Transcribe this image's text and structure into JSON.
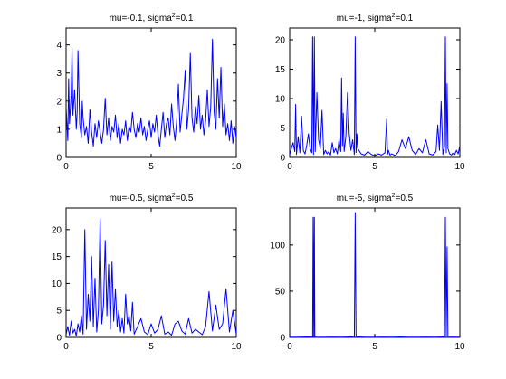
{
  "chart_data": [
    {
      "type": "line",
      "title": "mu=-0.1, sigma",
      "title_sup": "2",
      "title_end": "=0.1",
      "xlim": [
        0,
        10
      ],
      "ylim": [
        0,
        4.6
      ],
      "xticks": [
        "0",
        "5",
        "10"
      ],
      "yticks": [
        "0",
        "1",
        "2",
        "3",
        "4"
      ],
      "line_color": "#0000ff",
      "series": [
        {
          "x": [
            0.0,
            0.1,
            0.15,
            0.2,
            0.3,
            0.35,
            0.4,
            0.5,
            0.6,
            0.65,
            0.7,
            0.8,
            0.9,
            0.95,
            1.0,
            1.1,
            1.2,
            1.3,
            1.4,
            1.5,
            1.6,
            1.7,
            1.8,
            1.9,
            2.0,
            2.1,
            2.2,
            2.3,
            2.4,
            2.5,
            2.6,
            2.7,
            2.8,
            2.9,
            3.0,
            3.1,
            3.2,
            3.3,
            3.4,
            3.5,
            3.6,
            3.7,
            3.8,
            3.9,
            4.0,
            4.1,
            4.2,
            4.3,
            4.4,
            4.5,
            4.6,
            4.7,
            4.8,
            4.9,
            5.0,
            5.1,
            5.2,
            5.3,
            5.4,
            5.5,
            5.6,
            5.7,
            5.8,
            5.9,
            6.0,
            6.1,
            6.2,
            6.3,
            6.4,
            6.5,
            6.6,
            6.7,
            6.8,
            6.9,
            7.0,
            7.1,
            7.2,
            7.3,
            7.4,
            7.5,
            7.6,
            7.7,
            7.8,
            7.9,
            8.0,
            8.1,
            8.2,
            8.3,
            8.4,
            8.5,
            8.6,
            8.7,
            8.8,
            8.9,
            9.0,
            9.1,
            9.2,
            9.3,
            9.4,
            9.5,
            9.6,
            9.7,
            9.8,
            9.9,
            10.0
          ],
          "y": [
            1.8,
            0.6,
            2.8,
            1.2,
            2.2,
            3.9,
            1.5,
            2.4,
            1.0,
            1.6,
            3.8,
            1.2,
            0.7,
            2.0,
            1.4,
            0.8,
            1.1,
            0.5,
            1.7,
            0.9,
            0.4,
            1.2,
            0.7,
            1.3,
            0.9,
            0.5,
            1.0,
            2.1,
            0.8,
            1.4,
            0.6,
            1.1,
            0.9,
            1.5,
            0.7,
            1.2,
            0.5,
            1.0,
            0.8,
            1.3,
            0.6,
            1.1,
            0.9,
            1.6,
            1.0,
            0.7,
            1.2,
            0.9,
            1.4,
            0.8,
            1.1,
            0.6,
            1.0,
            1.3,
            0.7,
            1.2,
            0.9,
            1.5,
            0.8,
            0.4,
            1.0,
            1.6,
            0.7,
            1.2,
            1.4,
            0.8,
            1.9,
            1.1,
            0.6,
            1.3,
            2.6,
            0.9,
            1.5,
            2.1,
            3.1,
            1.0,
            1.7,
            3.7,
            1.4,
            0.9,
            1.8,
            1.2,
            2.2,
            1.0,
            1.5,
            0.8,
            1.3,
            2.4,
            1.1,
            1.8,
            4.2,
            1.6,
            1.0,
            2.8,
            1.4,
            3.2,
            1.1,
            1.9,
            0.8,
            1.2,
            0.6,
            1.3,
            0.5,
            1.1,
            0.7
          ]
        }
      ]
    },
    {
      "type": "line",
      "title": "mu=-1, sigma",
      "title_sup": "2",
      "title_end": "=0.1",
      "xlim": [
        0,
        10
      ],
      "ylim": [
        0,
        22
      ],
      "xticks": [
        "0",
        "5",
        "10"
      ],
      "yticks": [
        "0",
        "5",
        "10",
        "15",
        "20"
      ],
      "line_color": "#0000ff",
      "series": [
        {
          "x": [
            0.0,
            0.2,
            0.3,
            0.35,
            0.4,
            0.5,
            0.6,
            0.7,
            0.8,
            0.9,
            1.0,
            1.1,
            1.2,
            1.3,
            1.35,
            1.4,
            1.45,
            1.5,
            1.6,
            1.7,
            1.8,
            1.9,
            2.0,
            2.1,
            2.2,
            2.3,
            2.4,
            2.5,
            2.6,
            2.7,
            2.8,
            2.9,
            3.0,
            3.05,
            3.1,
            3.15,
            3.2,
            3.3,
            3.4,
            3.5,
            3.6,
            3.7,
            3.8,
            3.85,
            3.9,
            3.95,
            4.0,
            4.2,
            4.4,
            4.6,
            4.8,
            5.0,
            5.2,
            5.4,
            5.6,
            5.7,
            5.75,
            5.8,
            5.9,
            6.0,
            6.2,
            6.4,
            6.6,
            6.8,
            7.0,
            7.2,
            7.4,
            7.6,
            7.8,
            8.0,
            8.2,
            8.4,
            8.6,
            8.7,
            8.8,
            8.9,
            9.0,
            9.1,
            9.15,
            9.2,
            9.25,
            9.3,
            9.4,
            9.5,
            9.6,
            9.7,
            9.8,
            9.9,
            10.0
          ],
          "y": [
            0.5,
            2.5,
            1.0,
            9.0,
            0.5,
            3.5,
            0.8,
            7.0,
            1.2,
            0.6,
            2.0,
            4.0,
            1.5,
            0.8,
            20.5,
            0.5,
            20.5,
            1.0,
            11.0,
            3.0,
            1.5,
            8.0,
            0.5,
            1.2,
            0.6,
            1.0,
            0.4,
            2.5,
            0.8,
            1.5,
            0.6,
            3.0,
            1.0,
            13.5,
            2.0,
            7.5,
            1.0,
            3.5,
            11.0,
            4.0,
            1.2,
            3.0,
            0.5,
            20.5,
            0.8,
            4.0,
            1.5,
            0.6,
            0.4,
            1.0,
            0.5,
            0.3,
            0.6,
            0.4,
            0.8,
            6.5,
            0.5,
            1.2,
            0.4,
            0.6,
            0.3,
            1.0,
            3.0,
            1.5,
            3.5,
            1.2,
            0.5,
            1.5,
            0.8,
            3.0,
            0.6,
            0.4,
            1.0,
            5.5,
            1.2,
            9.5,
            0.5,
            2.0,
            20.5,
            0.8,
            12.5,
            1.5,
            0.6,
            0.4,
            0.8,
            0.5,
            1.2,
            0.6,
            2.0
          ]
        }
      ]
    },
    {
      "type": "line",
      "title": "mu=-0.5, sigma",
      "title_sup": "2",
      "title_end": "=0.5",
      "xlim": [
        0,
        10
      ],
      "ylim": [
        0,
        24
      ],
      "xticks": [
        "0",
        "5",
        "10"
      ],
      "yticks": [
        "0",
        "5",
        "10",
        "15",
        "20"
      ],
      "line_color": "#0000ff",
      "series": [
        {
          "x": [
            0.0,
            0.1,
            0.2,
            0.3,
            0.4,
            0.5,
            0.6,
            0.7,
            0.8,
            0.9,
            1.0,
            1.1,
            1.2,
            1.3,
            1.4,
            1.5,
            1.6,
            1.7,
            1.8,
            1.9,
            2.0,
            2.1,
            2.2,
            2.3,
            2.4,
            2.5,
            2.6,
            2.7,
            2.8,
            2.9,
            3.0,
            3.1,
            3.2,
            3.3,
            3.4,
            3.5,
            3.6,
            3.7,
            3.8,
            3.9,
            4.0,
            4.2,
            4.4,
            4.6,
            4.8,
            5.0,
            5.2,
            5.4,
            5.6,
            5.8,
            6.0,
            6.2,
            6.4,
            6.6,
            6.8,
            7.0,
            7.2,
            7.4,
            7.6,
            7.8,
            8.0,
            8.2,
            8.4,
            8.6,
            8.8,
            9.0,
            9.2,
            9.4,
            9.6,
            9.8,
            10.0
          ],
          "y": [
            0.5,
            2.0,
            0.4,
            3.0,
            0.8,
            1.5,
            0.3,
            2.5,
            1.0,
            4.0,
            0.6,
            20.0,
            1.5,
            8.0,
            3.0,
            15.0,
            2.0,
            11.0,
            1.0,
            5.0,
            22.0,
            2.5,
            6.0,
            18.0,
            4.0,
            13.5,
            1.5,
            14.0,
            3.0,
            9.0,
            2.0,
            5.0,
            1.0,
            3.5,
            0.8,
            8.0,
            2.5,
            4.0,
            1.2,
            6.5,
            0.6,
            2.0,
            3.5,
            1.0,
            0.5,
            2.5,
            0.8,
            1.5,
            4.0,
            0.6,
            1.0,
            0.4,
            2.5,
            3.0,
            1.2,
            0.6,
            3.5,
            0.8,
            1.5,
            1.0,
            0.5,
            2.0,
            8.5,
            1.2,
            6.0,
            1.5,
            2.5,
            9.0,
            1.0,
            5.0,
            0.6
          ]
        }
      ]
    },
    {
      "type": "line",
      "title": "mu=-5, sigma",
      "title_sup": "2",
      "title_end": "=0.5",
      "xlim": [
        0,
        10
      ],
      "ylim": [
        0,
        140
      ],
      "xticks": [
        "0",
        "5",
        "10"
      ],
      "yticks": [
        "0",
        "50",
        "100"
      ],
      "line_color": "#0000ff",
      "series": [
        {
          "x": [
            0.0,
            0.5,
            1.0,
            1.35,
            1.38,
            1.42,
            1.45,
            1.48,
            1.5,
            2.0,
            2.5,
            3.0,
            3.5,
            3.8,
            3.85,
            3.9,
            4.0,
            4.5,
            5.0,
            5.5,
            6.0,
            6.5,
            7.0,
            7.5,
            8.0,
            8.5,
            9.0,
            9.1,
            9.15,
            9.2,
            9.25,
            9.3,
            9.35,
            9.5,
            10.0
          ],
          "y": [
            0.3,
            0.2,
            0.5,
            0.4,
            130,
            0.5,
            130,
            0.4,
            0.3,
            0.2,
            0.4,
            0.3,
            0.5,
            0.4,
            135,
            0.3,
            0.5,
            0.2,
            0.3,
            0.4,
            0.2,
            0.5,
            0.3,
            0.2,
            0.4,
            0.3,
            0.5,
            0.4,
            130,
            0.6,
            98,
            0.5,
            0.3,
            0.4,
            0.2
          ]
        }
      ]
    }
  ]
}
